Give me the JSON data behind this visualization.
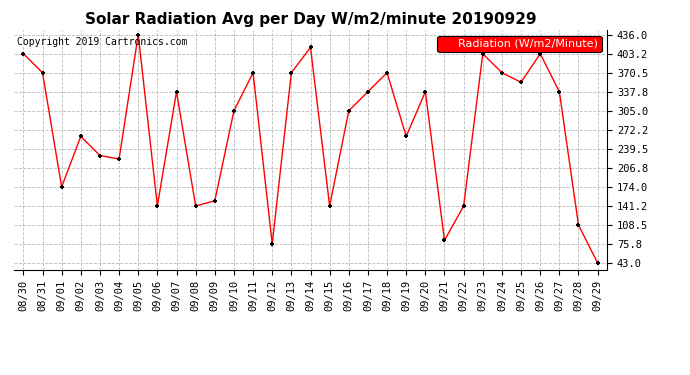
{
  "title": "Solar Radiation Avg per Day W/m2/minute 20190929",
  "copyright": "Copyright 2019 Cartronics.com",
  "legend_label": "Radiation (W/m2/Minute)",
  "dates": [
    "08/30",
    "08/31",
    "09/01",
    "09/02",
    "09/03",
    "09/04",
    "09/05",
    "09/06",
    "09/07",
    "09/08",
    "09/09",
    "09/10",
    "09/11",
    "09/12",
    "09/13",
    "09/14",
    "09/15",
    "09/16",
    "09/17",
    "09/18",
    "09/19",
    "09/20",
    "09/21",
    "09/22",
    "09/23",
    "09/24",
    "09/25",
    "09/26",
    "09/27",
    "09/28",
    "09/29"
  ],
  "values": [
    403.2,
    370.5,
    174.0,
    261.0,
    228.0,
    222.0,
    436.0,
    141.2,
    337.8,
    141.2,
    150.0,
    305.0,
    370.5,
    75.8,
    370.5,
    414.0,
    141.2,
    305.0,
    337.8,
    370.5,
    261.0,
    337.8,
    82.0,
    141.2,
    403.2,
    370.5,
    354.0,
    403.2,
    337.8,
    108.5,
    43.0
  ],
  "line_color": "red",
  "marker_color": "black",
  "bg_color": "#ffffff",
  "grid_color": "#bbbbbb",
  "ylim_min": 43.0,
  "ylim_max": 436.0,
  "yticks": [
    43.0,
    75.8,
    108.5,
    141.2,
    174.0,
    206.8,
    239.5,
    272.2,
    305.0,
    337.8,
    370.5,
    403.2,
    436.0
  ],
  "legend_bg": "red",
  "legend_text_color": "white",
  "title_fontsize": 11,
  "copyright_fontsize": 7,
  "tick_fontsize": 7.5,
  "legend_fontsize": 8
}
